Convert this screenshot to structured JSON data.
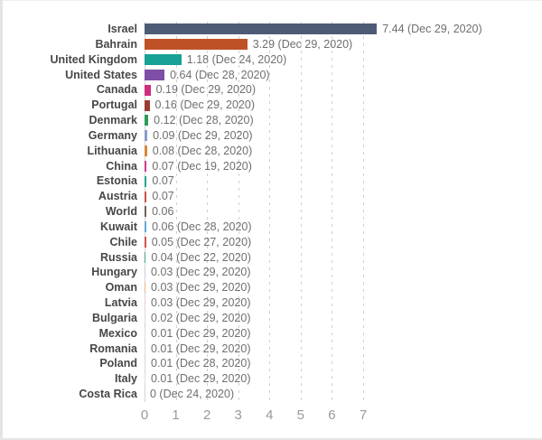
{
  "chart_data": {
    "type": "bar",
    "orientation": "horizontal",
    "title": "",
    "xlabel": "",
    "ylabel": "",
    "xlim": [
      0,
      7.5
    ],
    "grid": "dashed-vertical",
    "legend": "none",
    "x_ticks": [
      "0",
      "1",
      "2",
      "3",
      "4",
      "5",
      "6",
      "7"
    ],
    "bars": [
      {
        "country": "Israel",
        "value": 7.44,
        "label": "7.44 (Dec 29, 2020)",
        "color": "#4d5b75"
      },
      {
        "country": "Bahrain",
        "value": 3.29,
        "label": "3.29 (Dec 29, 2020)",
        "color": "#bf5127"
      },
      {
        "country": "United Kingdom",
        "value": 1.18,
        "label": "1.18 (Dec 24, 2020)",
        "color": "#18a195"
      },
      {
        "country": "United States",
        "value": 0.64,
        "label": "0.64 (Dec 28, 2020)",
        "color": "#7d4fa6"
      },
      {
        "country": "Canada",
        "value": 0.19,
        "label": "0.19 (Dec 29, 2020)",
        "color": "#cf2d7f"
      },
      {
        "country": "Portugal",
        "value": 0.16,
        "label": "0.16 (Dec 29, 2020)",
        "color": "#9c3b33"
      },
      {
        "country": "Denmark",
        "value": 0.12,
        "label": "0.12 (Dec 28, 2020)",
        "color": "#2c9c55"
      },
      {
        "country": "Germany",
        "value": 0.09,
        "label": "0.09 (Dec 29, 2020)",
        "color": "#8a9bc9"
      },
      {
        "country": "Lithuania",
        "value": 0.08,
        "label": "0.08 (Dec 28, 2020)",
        "color": "#d9863c"
      },
      {
        "country": "China",
        "value": 0.07,
        "label": "0.07 (Dec 19, 2020)",
        "color": "#ce3a8d"
      },
      {
        "country": "Estonia",
        "value": 0.07,
        "label": "0.07",
        "color": "#2ba293"
      },
      {
        "country": "Austria",
        "value": 0.07,
        "label": "0.07",
        "color": "#c9544c"
      },
      {
        "country": "World",
        "value": 0.06,
        "label": "0.06",
        "color": "#6b625c"
      },
      {
        "country": "Kuwait",
        "value": 0.06,
        "label": "0.06 (Dec 28, 2020)",
        "color": "#62a9da"
      },
      {
        "country": "Chile",
        "value": 0.05,
        "label": "0.05 (Dec 27, 2020)",
        "color": "#cb5449"
      },
      {
        "country": "Russia",
        "value": 0.04,
        "label": "0.04 (Dec 22, 2020)",
        "color": "#45a18c"
      },
      {
        "country": "Hungary",
        "value": 0.03,
        "label": "0.03 (Dec 29, 2020)",
        "color": "#c3cede"
      },
      {
        "country": "Oman",
        "value": 0.03,
        "label": "0.03 (Dec 29, 2020)",
        "color": "#ecb583"
      },
      {
        "country": "Latvia",
        "value": 0.03,
        "label": "0.03 (Dec 29, 2020)",
        "color": "#eccadb"
      },
      {
        "country": "Bulgaria",
        "value": 0.02,
        "label": "0.02 (Dec 29, 2020)",
        "color": "#cfe3d4"
      },
      {
        "country": "Mexico",
        "value": 0.01,
        "label": "0.01 (Dec 29, 2020)",
        "color": "#dcdcdc"
      },
      {
        "country": "Romania",
        "value": 0.01,
        "label": "0.01 (Dec 29, 2020)",
        "color": "#dcdcdc"
      },
      {
        "country": "Poland",
        "value": 0.01,
        "label": "0.01 (Dec 28, 2020)",
        "color": "#e0d6da"
      },
      {
        "country": "Italy",
        "value": 0.01,
        "label": "0.01 (Dec 29, 2020)",
        "color": "#dcdcdc"
      },
      {
        "country": "Costa Rica",
        "value": 0,
        "label": "0 (Dec 24, 2020)",
        "color": "#dcdcdc"
      }
    ]
  },
  "style": {
    "grid_color": "#cfcfcf",
    "zero_line_color": "#d4d4d4",
    "country_label_color": "#474747",
    "value_label_color": "#6f6f6f",
    "axis_tick_color": "#9a9a9a",
    "frame_edge_color": "#e4e4e4"
  }
}
